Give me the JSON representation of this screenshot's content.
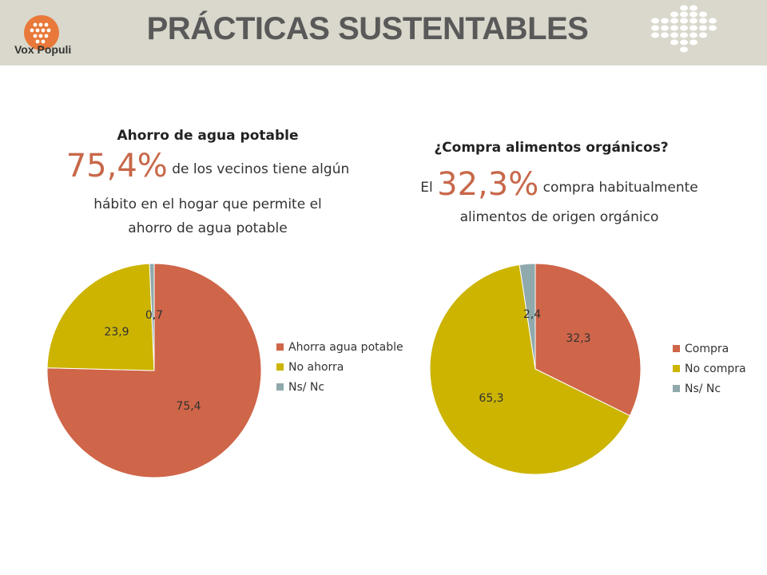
{
  "header": {
    "brand": "Vox Populi",
    "title": "PRÁCTICAS SUSTENTABLES"
  },
  "colors": {
    "red": "#cf6549",
    "yellow": "#ccb400",
    "gray": "#8fa9ac",
    "highlight": "#c8684a"
  },
  "left": {
    "title": "Ahorro de agua potable",
    "highlight": "75,4%",
    "text_1": "de los vecinos tiene algún",
    "text_2": "hábito en el hogar que permite el",
    "text_3": "ahorro de agua potable"
  },
  "right": {
    "title": "¿Compra alimentos orgánicos?",
    "prefix": "El",
    "highlight": "32,3%",
    "text_1": "compra habitualmente",
    "text_2": "alimentos de origen orgánico"
  },
  "chart_data": [
    {
      "type": "pie",
      "title": "",
      "categories": [
        "Ahorra agua potable",
        "No ahorra",
        "Ns/ Nc"
      ],
      "values": [
        75.4,
        23.9,
        0.7
      ],
      "labels": [
        "75,4",
        "23,9",
        "0,7"
      ],
      "colors": [
        "#cf6549",
        "#ccb400",
        "#8fa9ac"
      ],
      "legend": "right"
    },
    {
      "type": "pie",
      "title": "",
      "categories": [
        "Compra",
        "No compra",
        "Ns/ Nc"
      ],
      "values": [
        32.3,
        65.3,
        2.4
      ],
      "labels": [
        "32,3",
        "65,3",
        "2,4"
      ],
      "colors": [
        "#cf6549",
        "#ccb400",
        "#8fa9ac"
      ],
      "legend": "right"
    }
  ]
}
